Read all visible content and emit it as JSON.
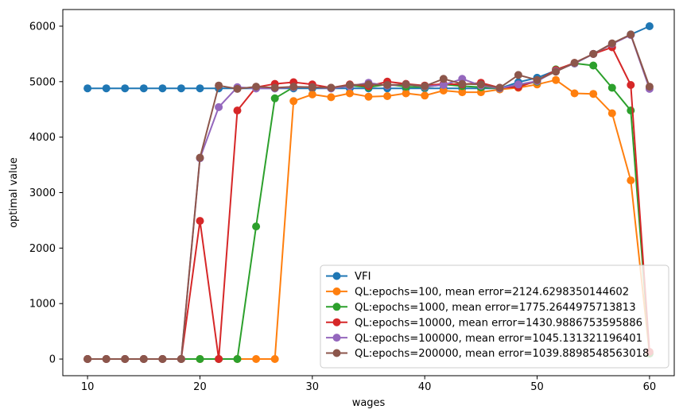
{
  "chart_data": {
    "type": "line",
    "title": "",
    "xlabel": "wages",
    "ylabel": "optimal value",
    "x_ticks": [
      10,
      20,
      30,
      40,
      50,
      60
    ],
    "y_ticks": [
      0,
      1000,
      2000,
      3000,
      4000,
      5000,
      6000
    ],
    "xlim": [
      7.8,
      62.2
    ],
    "ylim": [
      -300,
      6300
    ],
    "grid": false,
    "legend_position": "lower right",
    "marker": "o",
    "x": [
      10,
      11.67,
      13.33,
      15,
      16.67,
      18.33,
      20,
      21.67,
      23.33,
      25,
      26.67,
      28.33,
      30,
      31.67,
      33.33,
      35,
      36.67,
      38.33,
      40,
      41.67,
      43.33,
      45,
      46.67,
      48.33,
      50,
      51.67,
      53.33,
      55,
      56.67,
      58.33,
      60
    ],
    "series": [
      {
        "key": "vfi",
        "name": "VFI",
        "color": "#1f77b4",
        "values": [
          4880,
          4880,
          4880,
          4880,
          4880,
          4880,
          4880,
          4880,
          4880,
          4880,
          4880,
          4880,
          4880,
          4880,
          4880,
          4880,
          4880,
          4880,
          4880,
          4880,
          4880,
          4880,
          4880,
          4990,
          5070,
          5200,
          5330,
          5500,
          5680,
          5850,
          6000
        ]
      },
      {
        "key": "ql-epochs-100",
        "name": "QL:epochs=100, mean error=2124.6298350144602",
        "color": "#ff7f0e",
        "values": [
          0,
          0,
          0,
          0,
          0,
          0,
          0,
          0,
          0,
          0,
          0,
          4650,
          4770,
          4720,
          4790,
          4730,
          4740,
          4790,
          4750,
          4840,
          4810,
          4810,
          4860,
          4890,
          4950,
          5030,
          4790,
          4780,
          4430,
          3220,
          100
        ]
      },
      {
        "key": "ql-epochs-1000",
        "name": "QL:epochs=1000, mean error=1775.2644975713813",
        "color": "#2ca02c",
        "values": [
          0,
          0,
          0,
          0,
          0,
          0,
          0,
          0,
          0,
          2390,
          4700,
          4900,
          4900,
          4890,
          4930,
          4900,
          4950,
          4910,
          4900,
          4950,
          4920,
          4900,
          4880,
          4930,
          5000,
          5220,
          5330,
          5290,
          4890,
          4480,
          100
        ]
      },
      {
        "key": "ql-epochs-10000",
        "name": "QL:epochs=10000, mean error=1430.9886753595886",
        "color": "#d62728",
        "values": [
          0,
          0,
          0,
          0,
          0,
          0,
          2490,
          0,
          4480,
          4900,
          4960,
          4990,
          4950,
          4890,
          4950,
          4920,
          5000,
          4960,
          4930,
          4960,
          4950,
          4980,
          4890,
          4900,
          5020,
          5210,
          5340,
          5500,
          5620,
          4940,
          130
        ]
      },
      {
        "key": "ql-epochs-100000",
        "name": "QL:epochs=100000, mean error=1045.131321196401",
        "color": "#9467bd",
        "values": [
          0,
          0,
          0,
          0,
          0,
          0,
          3620,
          4540,
          4900,
          4880,
          4880,
          4900,
          4900,
          4880,
          4920,
          4980,
          4930,
          4950,
          4910,
          4940,
          5050,
          4930,
          4880,
          4950,
          5010,
          5190,
          5330,
          5500,
          5680,
          5840,
          4870
        ]
      },
      {
        "key": "ql-epochs-200000",
        "name": "QL:epochs=200000, mean error=1039.8898548563018",
        "color": "#8c564b",
        "values": [
          0,
          0,
          0,
          0,
          0,
          0,
          3630,
          4930,
          4870,
          4910,
          4890,
          4910,
          4900,
          4890,
          4940,
          4950,
          4940,
          4950,
          4920,
          5050,
          4960,
          4950,
          4890,
          5120,
          5030,
          5180,
          5340,
          5500,
          5690,
          5850,
          4910
        ]
      }
    ]
  }
}
